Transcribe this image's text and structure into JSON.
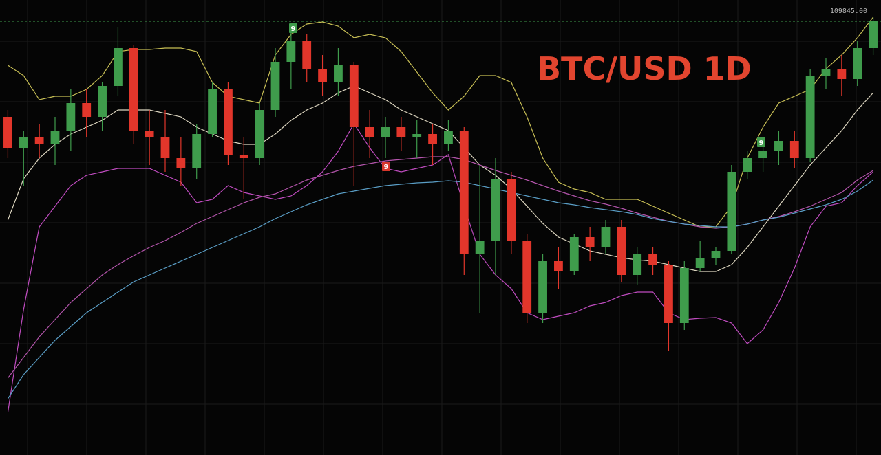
{
  "chart_data": {
    "type": "candlestick",
    "title": "BTC/USD 1D",
    "title_color": "#e2452f",
    "ylim": [
      62520,
      112170
    ],
    "grid": true,
    "up_color": "#3f9c4c",
    "down_color": "#e2362b",
    "last_price": {
      "value": 109845,
      "label": "109845.00"
    },
    "open": [
      99420,
      96045,
      97170,
      96420,
      97920,
      100920,
      99420,
      102795,
      106920,
      97920,
      97170,
      94920,
      93795,
      97545,
      102420,
      95295,
      94920,
      100170,
      105420,
      107670,
      104670,
      103170,
      105045,
      98295,
      97170,
      98295,
      97170,
      97545,
      96420,
      97920,
      84420,
      85920,
      92670,
      85920,
      78045,
      83670,
      82545,
      86295,
      85170,
      87420,
      82170,
      84420,
      83295,
      76920,
      82920,
      84045,
      84795,
      93420,
      94920,
      95670,
      96795,
      94920,
      103920,
      104670,
      103545,
      106920
    ],
    "high": [
      100170,
      97920,
      98670,
      99420,
      102420,
      102420,
      103170,
      109170,
      107295,
      100170,
      100170,
      97170,
      98670,
      103170,
      103170,
      97170,
      100920,
      106920,
      109170,
      108420,
      106170,
      106920,
      105420,
      100170,
      99420,
      99420,
      99045,
      98670,
      99045,
      98295,
      94170,
      94920,
      93420,
      86670,
      84420,
      85170,
      86670,
      87420,
      88170,
      88170,
      85170,
      85170,
      83670,
      83670,
      85920,
      85170,
      94170,
      95670,
      97170,
      97920,
      97920,
      104670,
      105795,
      106170,
      107670,
      110295
    ],
    "low": [
      94920,
      91920,
      94920,
      94170,
      95670,
      97170,
      97920,
      101670,
      96420,
      94170,
      93420,
      91920,
      92670,
      97170,
      94170,
      90420,
      94170,
      99420,
      102420,
      103170,
      101670,
      101670,
      91920,
      94920,
      94920,
      95670,
      94920,
      94170,
      95670,
      82170,
      78045,
      82170,
      84420,
      76920,
      76920,
      80670,
      82170,
      83670,
      84420,
      81420,
      81045,
      82170,
      73920,
      76170,
      82545,
      83295,
      84420,
      92670,
      93420,
      94170,
      93795,
      94545,
      102420,
      101670,
      102795,
      106170
    ],
    "close": [
      96045,
      97170,
      96420,
      97920,
      100920,
      99420,
      102795,
      106920,
      97920,
      97170,
      94920,
      93795,
      97545,
      102420,
      95295,
      94920,
      100170,
      105420,
      107670,
      104670,
      103170,
      105045,
      98295,
      97170,
      98295,
      97170,
      97545,
      96420,
      97920,
      84420,
      85920,
      92670,
      85920,
      78045,
      83670,
      82545,
      86295,
      85170,
      87420,
      82170,
      84420,
      83295,
      76920,
      82920,
      84045,
      84795,
      93420,
      94920,
      95670,
      96795,
      94920,
      103920,
      104670,
      103545,
      106920,
      109845
    ],
    "series": [
      {
        "color": "#c8bf55",
        "values": [
          105045,
          103920,
          101295,
          101670,
          101670,
          102420,
          103920,
          106545,
          106770,
          106770,
          106920,
          106920,
          106545,
          103170,
          101670,
          101295,
          100920,
          106170,
          108420,
          109545,
          109770,
          109320,
          108045,
          108420,
          108045,
          106545,
          104295,
          102045,
          100170,
          101670,
          103920,
          103920,
          103170,
          99420,
          94920,
          92295,
          91545,
          91170,
          90420,
          90420,
          90420,
          89670,
          88920,
          88170,
          87420,
          87420,
          89670,
          94920,
          98295,
          100920,
          101670,
          102420,
          104670,
          106170,
          108045,
          110295
        ]
      },
      {
        "color": "#ddd6c0",
        "values": [
          88170,
          92670,
          94920,
          96420,
          97545,
          98295,
          99045,
          100170,
          100170,
          100170,
          99795,
          99420,
          98295,
          97545,
          96795,
          96420,
          96420,
          97545,
          99045,
          100170,
          100920,
          102045,
          102795,
          102045,
          101295,
          100170,
          99420,
          98670,
          97920,
          96045,
          94170,
          93045,
          91545,
          89670,
          87795,
          86295,
          85545,
          84795,
          84420,
          84045,
          83820,
          83670,
          83295,
          82920,
          82545,
          82545,
          83295,
          85170,
          87420,
          89670,
          91920,
          94170,
          96045,
          97920,
          100170,
          102045
        ]
      },
      {
        "color": "#c04cc0",
        "values": [
          67170,
          78420,
          87420,
          89670,
          91920,
          93045,
          93420,
          93795,
          93795,
          93795,
          93045,
          92295,
          90045,
          90420,
          91920,
          91170,
          90795,
          90420,
          90795,
          91920,
          93420,
          95670,
          98670,
          96045,
          93795,
          93420,
          93795,
          94170,
          95295,
          89670,
          84420,
          82170,
          80670,
          78045,
          77295,
          77670,
          78045,
          78795,
          79170,
          79920,
          80295,
          80295,
          78045,
          77295,
          77445,
          77520,
          76920,
          74670,
          76170,
          79170,
          82920,
          87420,
          89670,
          90045,
          91920,
          93420
        ]
      },
      {
        "color": "#b455ac",
        "values": [
          70920,
          73170,
          75420,
          77295,
          79170,
          80670,
          82170,
          83295,
          84270,
          85170,
          85920,
          86820,
          87795,
          88545,
          89295,
          90045,
          90645,
          91020,
          91770,
          92520,
          93045,
          93570,
          94020,
          94320,
          94620,
          94770,
          94920,
          95070,
          95070,
          94770,
          94170,
          93570,
          93045,
          92520,
          91920,
          91320,
          90795,
          90270,
          89895,
          89445,
          88920,
          88470,
          88020,
          87720,
          87420,
          87270,
          87420,
          87720,
          88170,
          88545,
          89070,
          89670,
          90420,
          91170,
          92520,
          93570
        ]
      },
      {
        "color": "#5a9ec6",
        "values": [
          68670,
          71295,
          73170,
          75045,
          76545,
          78045,
          79170,
          80295,
          81420,
          82170,
          82920,
          83670,
          84420,
          85170,
          85920,
          86670,
          87420,
          88320,
          89070,
          89820,
          90420,
          91020,
          91320,
          91620,
          91920,
          92070,
          92220,
          92295,
          92445,
          92295,
          91920,
          91545,
          91170,
          90795,
          90420,
          90045,
          89820,
          89520,
          89295,
          89070,
          88770,
          88320,
          88020,
          87720,
          87570,
          87420,
          87420,
          87720,
          88170,
          88470,
          88920,
          89370,
          89820,
          90420,
          91320,
          92520
        ]
      }
    ],
    "markers": [
      {
        "label": "9",
        "color": "#3f9c4c"
      },
      {
        "label": "9",
        "color": "#d8362b"
      },
      {
        "label": "9",
        "color": "#3f9c4c"
      }
    ]
  }
}
